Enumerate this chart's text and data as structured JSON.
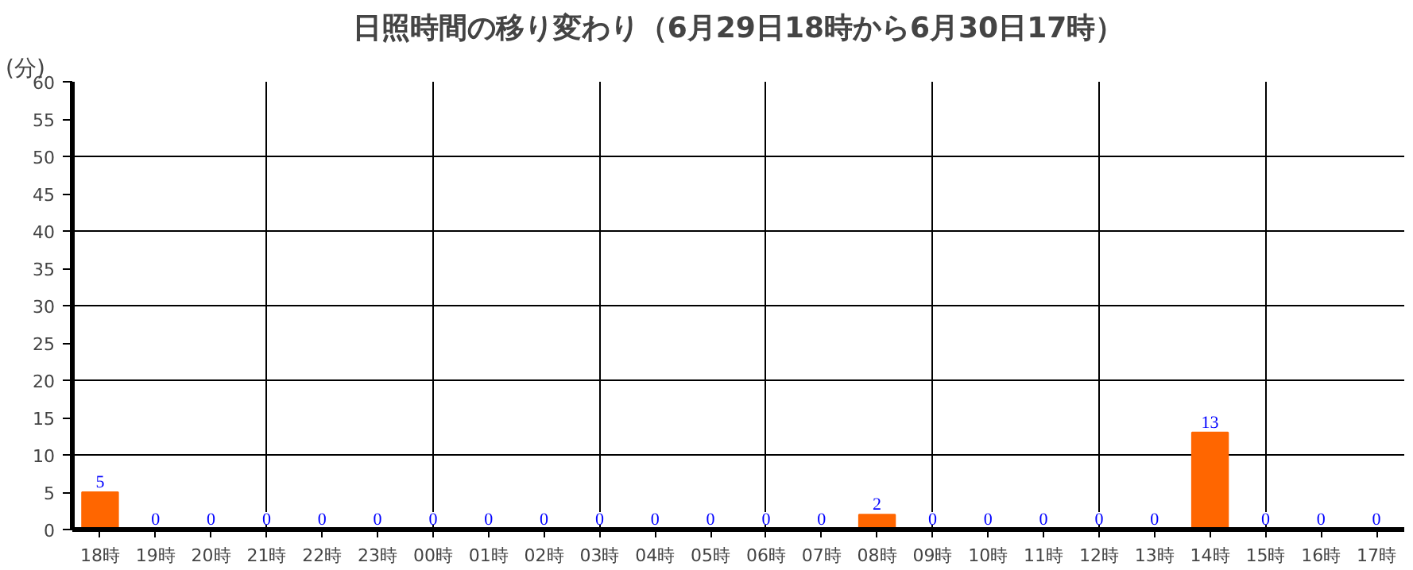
{
  "chart_data": {
    "type": "bar",
    "title": "日照時間の移り変わり（6月29日18時から6月30日17時）",
    "ylabel": "(分)",
    "categories": [
      "18時",
      "19時",
      "20時",
      "21時",
      "22時",
      "23時",
      "00時",
      "01時",
      "02時",
      "03時",
      "04時",
      "05時",
      "06時",
      "07時",
      "08時",
      "09時",
      "10時",
      "11時",
      "12時",
      "13時",
      "14時",
      "15時",
      "16時",
      "17時"
    ],
    "values": [
      5,
      0,
      0,
      0,
      0,
      0,
      0,
      0,
      0,
      0,
      0,
      0,
      0,
      0,
      2,
      0,
      0,
      0,
      0,
      0,
      13,
      0,
      0,
      0
    ],
    "color": "#ff6600",
    "ylim": [
      0,
      60
    ],
    "yticks": [
      0,
      5,
      10,
      15,
      20,
      25,
      30,
      35,
      40,
      45,
      50,
      55,
      60
    ],
    "grid": true,
    "data_labels": true
  }
}
